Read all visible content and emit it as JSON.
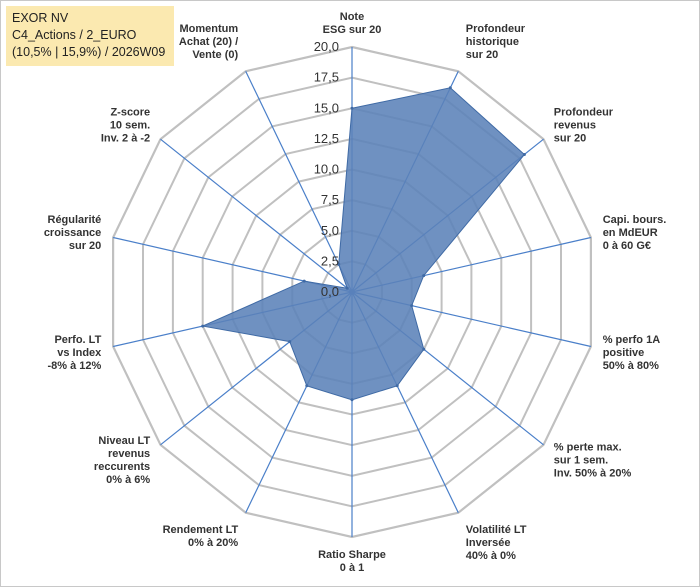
{
  "title": {
    "line1": "EXOR NV",
    "line2": "C4_Actions / 2_EURO",
    "line3": "(10,5% | 15,9%) / 2026W09"
  },
  "chart_data": {
    "type": "radar",
    "rmax": 20,
    "ticks": [
      "0,0",
      "2,5",
      "5,0",
      "7,5",
      "10,0",
      "12,5",
      "15,0",
      "17,5",
      "20,0"
    ],
    "colors": {
      "fill": "#5b82b8",
      "stroke": "#3f6aa5",
      "grid": "#c0c0c0",
      "spoke": "#4a7fc9"
    },
    "axes": [
      {
        "lines": [
          "Note",
          "ESG sur 20"
        ],
        "value": 15.0
      },
      {
        "lines": [
          "Profondeur",
          "historique",
          "sur 20"
        ],
        "value": 18.5
      },
      {
        "lines": [
          "Profondeur",
          "revenus",
          "sur 20"
        ],
        "value": 18.0
      },
      {
        "lines": [
          "Capi. bours.",
          "en MdEUR",
          "0 à 60 G€"
        ],
        "value": 6.0
      },
      {
        "lines": [
          "% perfo 1A",
          "positive",
          "50% à 80%"
        ],
        "value": 5.0
      },
      {
        "lines": [
          "% perte max.",
          "sur 1 sem.",
          "Inv. 50% à 20%"
        ],
        "value": 7.5
      },
      {
        "lines": [
          "Volatilité LT",
          "Inversée",
          "40% à 0%"
        ],
        "value": 8.5
      },
      {
        "lines": [
          "Ratio Sharpe",
          "0 à 1"
        ],
        "value": 8.8
      },
      {
        "lines": [
          "Rendement LT",
          "0% à 20%"
        ],
        "value": 8.5
      },
      {
        "lines": [
          "Niveau LT",
          "revenus",
          "reccurents",
          "0% à 6%"
        ],
        "value": 6.5
      },
      {
        "lines": [
          "Perfo. LT",
          "vs Index",
          "-8% à 12%"
        ],
        "value": 12.5
      },
      {
        "lines": [
          "Régularité",
          "croissance",
          "sur 20"
        ],
        "value": 4.0
      },
      {
        "lines": [
          "Z-score",
          "10 sem.",
          "Inv. 2 à -2"
        ],
        "value": 0.5
      },
      {
        "lines": [
          "Momentum",
          "Achat (20) /",
          "Vente (0)"
        ],
        "value": 2.5
      }
    ]
  }
}
